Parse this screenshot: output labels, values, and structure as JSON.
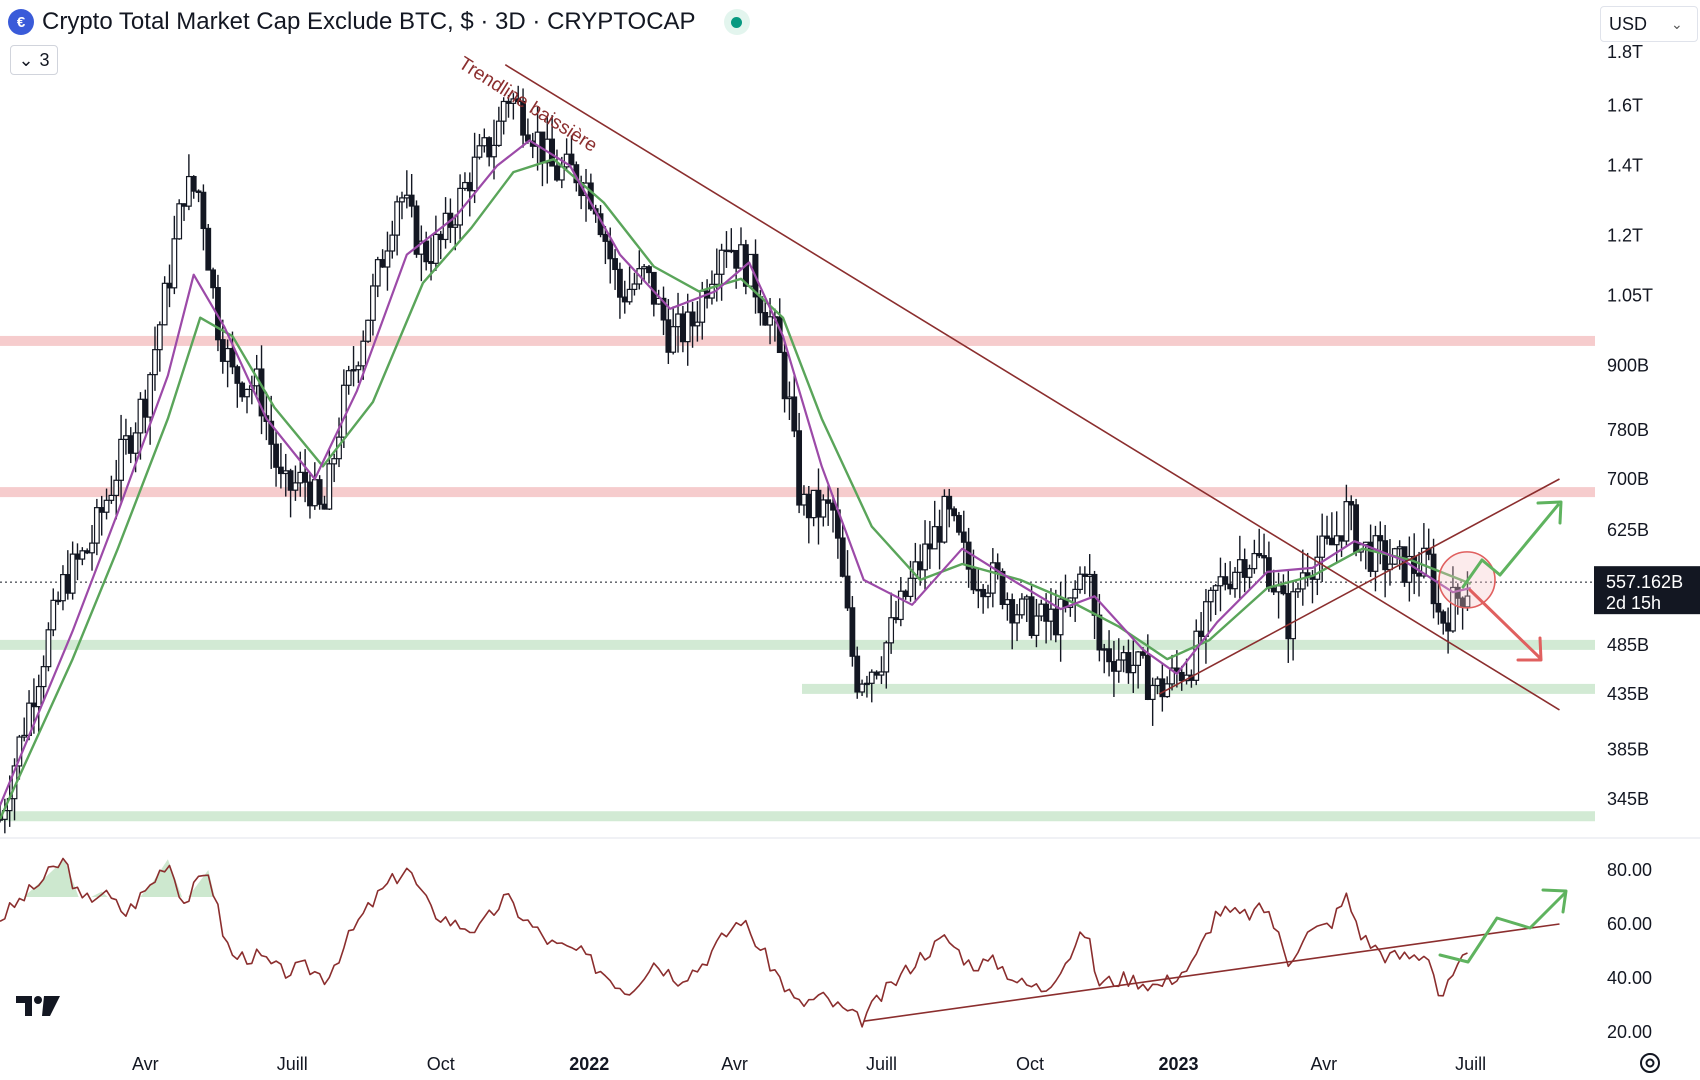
{
  "header": {
    "logo_icon": "cryptocap-logo-icon",
    "title": "Crypto Total Market Cap Exclude BTC, $ · 3D · CRYPTOCAP",
    "live_status_color": "#089981"
  },
  "collapse_button": {
    "label": "3"
  },
  "currency_select": {
    "value": "USD"
  },
  "annotation": {
    "trendline_label": "Trendline baissière"
  },
  "last_price": {
    "value": "557.162B",
    "countdown": "2d 15h"
  },
  "colors": {
    "candles": "#131722",
    "ma_fast": "#9c4aa8",
    "ma_slow": "#5aa55a",
    "resistance_zone": "#f5c6c8",
    "support_zone": "#cde8cf",
    "trendline": "#8b2e2e",
    "rsi_line": "#8b2e2e",
    "bull_arrow": "#5fb35f",
    "bear_arrow": "#e0605f"
  },
  "chart_data": [
    {
      "type": "candlestick",
      "title": "Crypto Total Market Cap Exclude BTC, $ · 3D · CRYPTOCAP",
      "price_scale": "log",
      "y_tick_labels": [
        "1.8T",
        "1.6T",
        "1.4T",
        "1.2T",
        "1.05T",
        "900B",
        "780B",
        "700B",
        "625B",
        "557.162B",
        "485B",
        "435B",
        "385B",
        "345B"
      ],
      "x_tick_labels": [
        "Avr",
        "Juill",
        "Oct",
        "2022",
        "Avr",
        "Juill",
        "Oct",
        "2023",
        "Avr",
        "Juill"
      ],
      "x_range": [
        "2021-01",
        "2023-08"
      ],
      "y_range_billions": [
        330,
        1850
      ],
      "last_price_billions": 557.162,
      "horizontal_zones": [
        {
          "kind": "resistance",
          "level_billions": 950
        },
        {
          "kind": "resistance",
          "level_billions": 680
        },
        {
          "kind": "support",
          "level_billions": 485
        },
        {
          "kind": "support",
          "level_billions": 440
        },
        {
          "kind": "support",
          "level_billions": 332
        }
      ],
      "series": [
        {
          "name": "",
          "kind": "price_close",
          "points": [
            [
              "2021-01-01",
              330
            ],
            [
              "2021-01-20",
              430
            ],
            [
              "2021-02-10",
              560
            ],
            [
              "2021-02-25",
              600
            ],
            [
              "2021-03-15",
              720
            ],
            [
              "2021-04-01",
              840
            ],
            [
              "2021-04-15",
              1080
            ],
            [
              "2021-04-25",
              1330
            ],
            [
              "2021-05-05",
              1320
            ],
            [
              "2021-05-15",
              1000
            ],
            [
              "2021-05-25",
              880
            ],
            [
              "2021-06-10",
              860
            ],
            [
              "2021-06-25",
              680
            ],
            [
              "2021-07-10",
              700
            ],
            [
              "2021-07-20",
              640
            ],
            [
              "2021-08-01",
              820
            ],
            [
              "2021-08-20",
              1050
            ],
            [
              "2021-09-05",
              1330
            ],
            [
              "2021-09-20",
              1150
            ],
            [
              "2021-10-01",
              1180
            ],
            [
              "2021-10-20",
              1380
            ],
            [
              "2021-11-05",
              1500
            ],
            [
              "2021-11-10",
              1650
            ],
            [
              "2021-11-25",
              1540
            ],
            [
              "2021-12-10",
              1380
            ],
            [
              "2021-12-25",
              1380
            ],
            [
              "2022-01-05",
              1300
            ],
            [
              "2022-01-20",
              1050
            ],
            [
              "2022-02-05",
              1100
            ],
            [
              "2022-02-20",
              960
            ],
            [
              "2022-03-05",
              980
            ],
            [
              "2022-03-25",
              1200
            ],
            [
              "2022-04-10",
              1110
            ],
            [
              "2022-04-25",
              980
            ],
            [
              "2022-05-05",
              820
            ],
            [
              "2022-05-12",
              660
            ],
            [
              "2022-06-01",
              650
            ],
            [
              "2022-06-15",
              450
            ],
            [
              "2022-06-30",
              470
            ],
            [
              "2022-07-20",
              560
            ],
            [
              "2022-08-10",
              650
            ],
            [
              "2022-08-25",
              570
            ],
            [
              "2022-09-10",
              560
            ],
            [
              "2022-09-25",
              520
            ],
            [
              "2022-10-10",
              510
            ],
            [
              "2022-10-25",
              520
            ],
            [
              "2022-11-05",
              590
            ],
            [
              "2022-11-12",
              480
            ],
            [
              "2022-12-01",
              470
            ],
            [
              "2022-12-20",
              438
            ],
            [
              "2023-01-10",
              470
            ],
            [
              "2023-01-25",
              550
            ],
            [
              "2023-02-10",
              590
            ],
            [
              "2023-02-25",
              580
            ],
            [
              "2023-03-10",
              510
            ],
            [
              "2023-03-20",
              580
            ],
            [
              "2023-04-05",
              600
            ],
            [
              "2023-04-15",
              650
            ],
            [
              "2023-04-25",
              600
            ],
            [
              "2023-05-10",
              585
            ],
            [
              "2023-05-25",
              575
            ],
            [
              "2023-06-05",
              580
            ],
            [
              "2023-06-12",
              510
            ],
            [
              "2023-06-25",
              545
            ],
            [
              "2023-07-01",
              557.162
            ]
          ]
        },
        {
          "name": "",
          "kind": "moving_average_fast",
          "points": [
            [
              "2021-01-01",
              340
            ],
            [
              "2021-02-15",
              500
            ],
            [
              "2021-03-15",
              650
            ],
            [
              "2021-04-15",
              880
            ],
            [
              "2021-05-01",
              1100
            ],
            [
              "2021-05-20",
              980
            ],
            [
              "2021-06-15",
              800
            ],
            [
              "2021-07-15",
              700
            ],
            [
              "2021-08-10",
              850
            ],
            [
              "2021-09-10",
              1150
            ],
            [
              "2021-10-10",
              1250
            ],
            [
              "2021-11-05",
              1400
            ],
            [
              "2021-11-25",
              1480
            ],
            [
              "2021-12-20",
              1400
            ],
            [
              "2022-01-20",
              1150
            ],
            [
              "2022-02-20",
              1020
            ],
            [
              "2022-03-20",
              1060
            ],
            [
              "2022-04-10",
              1130
            ],
            [
              "2022-05-01",
              960
            ],
            [
              "2022-05-25",
              720
            ],
            [
              "2022-06-20",
              560
            ],
            [
              "2022-07-20",
              530
            ],
            [
              "2022-08-20",
              600
            ],
            [
              "2022-09-20",
              560
            ],
            [
              "2022-10-20",
              525
            ],
            [
              "2022-11-10",
              540
            ],
            [
              "2022-12-10",
              480
            ],
            [
              "2022-12-31",
              455
            ],
            [
              "2023-01-25",
              510
            ],
            [
              "2023-02-25",
              570
            ],
            [
              "2023-03-25",
              575
            ],
            [
              "2023-04-20",
              610
            ],
            [
              "2023-05-20",
              585
            ],
            [
              "2023-06-20",
              545
            ],
            [
              "2023-07-01",
              550
            ]
          ]
        },
        {
          "name": "",
          "kind": "moving_average_slow",
          "points": [
            [
              "2021-01-01",
              330
            ],
            [
              "2021-02-15",
              470
            ],
            [
              "2021-03-15",
              600
            ],
            [
              "2021-04-15",
              800
            ],
            [
              "2021-05-05",
              1000
            ],
            [
              "2021-05-25",
              960
            ],
            [
              "2021-06-20",
              820
            ],
            [
              "2021-07-20",
              720
            ],
            [
              "2021-08-20",
              830
            ],
            [
              "2021-09-20",
              1080
            ],
            [
              "2021-10-20",
              1220
            ],
            [
              "2021-11-15",
              1380
            ],
            [
              "2021-12-10",
              1420
            ],
            [
              "2022-01-10",
              1290
            ],
            [
              "2022-02-10",
              1120
            ],
            [
              "2022-03-10",
              1060
            ],
            [
              "2022-04-05",
              1090
            ],
            [
              "2022-05-01",
              1000
            ],
            [
              "2022-05-25",
              800
            ],
            [
              "2022-06-25",
              630
            ],
            [
              "2022-07-25",
              560
            ],
            [
              "2022-08-20",
              580
            ],
            [
              "2022-09-25",
              560
            ],
            [
              "2022-10-25",
              535
            ],
            [
              "2022-11-25",
              505
            ],
            [
              "2022-12-25",
              470
            ],
            [
              "2023-01-20",
              490
            ],
            [
              "2023-02-25",
              550
            ],
            [
              "2023-03-25",
              565
            ],
            [
              "2023-04-25",
              600
            ],
            [
              "2023-05-25",
              585
            ],
            [
              "2023-06-25",
              560
            ],
            [
              "2023-07-01",
              555
            ]
          ]
        }
      ],
      "drawings": [
        {
          "kind": "trendline",
          "label": "Trendline baissière",
          "from": [
            "2021-11-10",
            1750
          ],
          "to": [
            "2023-08-25",
            420
          ]
        },
        {
          "kind": "trendline",
          "from": [
            "2022-12-20",
            435
          ],
          "to": [
            "2023-08-25",
            700
          ]
        },
        {
          "kind": "arrow",
          "direction": "up",
          "color": "bull"
        },
        {
          "kind": "arrow",
          "direction": "down",
          "color": "bear"
        },
        {
          "kind": "circle",
          "at": [
            "2023-06-25",
            560
          ]
        }
      ]
    },
    {
      "type": "line",
      "title": "",
      "x_tick_labels": [
        "Avr",
        "Juill",
        "Oct",
        "2022",
        "Avr",
        "Juill",
        "Oct",
        "2023",
        "Avr",
        "Juill"
      ],
      "y_tick_labels": [
        "80.00",
        "60.00",
        "40.00",
        "20.00"
      ],
      "ylim": [
        15,
        88
      ],
      "series": [
        {
          "name": "",
          "kind": "oscillator",
          "points": [
            [
              "2021-01-01",
              62
            ],
            [
              "2021-01-25",
              75
            ],
            [
              "2021-02-10",
              84
            ],
            [
              "2021-02-20",
              68
            ],
            [
              "2021-03-05",
              72
            ],
            [
              "2021-03-20",
              64
            ],
            [
              "2021-04-05",
              75
            ],
            [
              "2021-04-15",
              84
            ],
            [
              "2021-04-25",
              68
            ],
            [
              "2021-05-10",
              80
            ],
            [
              "2021-05-20",
              55
            ],
            [
              "2021-05-25",
              48
            ],
            [
              "2021-06-10",
              48
            ],
            [
              "2021-06-25",
              42
            ],
            [
              "2021-07-10",
              44
            ],
            [
              "2021-07-22",
              40
            ],
            [
              "2021-08-10",
              60
            ],
            [
              "2021-08-25",
              72
            ],
            [
              "2021-09-10",
              81
            ],
            [
              "2021-09-25",
              65
            ],
            [
              "2021-10-10",
              60
            ],
            [
              "2021-10-25",
              58
            ],
            [
              "2021-11-10",
              70
            ],
            [
              "2021-11-25",
              60
            ],
            [
              "2021-12-10",
              52
            ],
            [
              "2021-12-25",
              50
            ],
            [
              "2022-01-10",
              42
            ],
            [
              "2022-01-25",
              35
            ],
            [
              "2022-02-10",
              46
            ],
            [
              "2022-02-25",
              40
            ],
            [
              "2022-03-10",
              44
            ],
            [
              "2022-03-25",
              55
            ],
            [
              "2022-04-05",
              62
            ],
            [
              "2022-04-20",
              48
            ],
            [
              "2022-05-10",
              30
            ],
            [
              "2022-05-25",
              33
            ],
            [
              "2022-06-18",
              24
            ],
            [
              "2022-07-05",
              36
            ],
            [
              "2022-07-25",
              48
            ],
            [
              "2022-08-10",
              55
            ],
            [
              "2022-08-25",
              45
            ],
            [
              "2022-09-10",
              46
            ],
            [
              "2022-09-25",
              38
            ],
            [
              "2022-10-10",
              36
            ],
            [
              "2022-10-25",
              48
            ],
            [
              "2022-11-05",
              58
            ],
            [
              "2022-11-12",
              38
            ],
            [
              "2022-11-30",
              40
            ],
            [
              "2022-12-20",
              37
            ],
            [
              "2023-01-10",
              45
            ],
            [
              "2023-01-25",
              65
            ],
            [
              "2023-02-10",
              63
            ],
            [
              "2023-02-25",
              66
            ],
            [
              "2023-03-10",
              46
            ],
            [
              "2023-03-20",
              56
            ],
            [
              "2023-04-05",
              60
            ],
            [
              "2023-04-15",
              70
            ],
            [
              "2023-04-25",
              55
            ],
            [
              "2023-05-10",
              48
            ],
            [
              "2023-05-25",
              48
            ],
            [
              "2023-06-05",
              49
            ],
            [
              "2023-06-12",
              32
            ],
            [
              "2023-06-25",
              45
            ],
            [
              "2023-07-01",
              49
            ]
          ]
        }
      ],
      "drawings": [
        {
          "kind": "trendline",
          "from": [
            "2022-06-20",
            24
          ],
          "to": [
            "2023-08-25",
            60
          ]
        },
        {
          "kind": "arrow",
          "direction": "up",
          "color": "bull"
        }
      ]
    }
  ]
}
